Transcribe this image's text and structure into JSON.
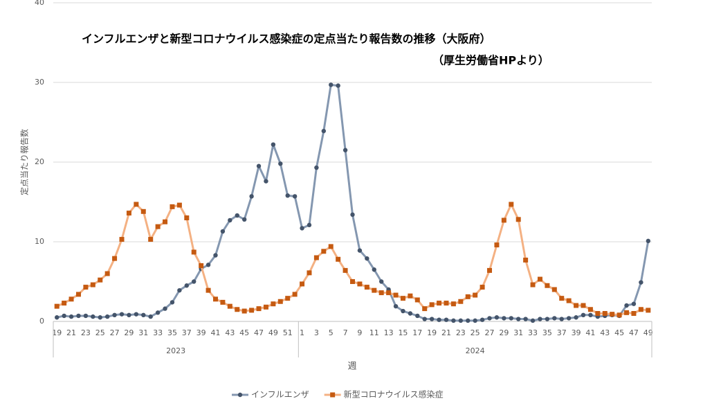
{
  "chart_data": {
    "type": "line",
    "title": "インフルエンザと新型コロナウイルス感染症の定点当たり報告数の推移（大阪府）",
    "subtitle": "（厚生労働省HPより）",
    "y_label": "定点当たり報告数",
    "x_label": "週",
    "categories": [
      "19",
      null,
      "21",
      null,
      "23",
      null,
      "25",
      null,
      "27",
      null,
      "29",
      null,
      "31",
      null,
      "33",
      null,
      "35",
      null,
      "37",
      null,
      "39",
      null,
      "41",
      null,
      "43",
      null,
      "45",
      null,
      "47",
      null,
      "49",
      null,
      "51",
      null,
      "1",
      null,
      "3",
      null,
      "5",
      null,
      "7",
      null,
      "9",
      null,
      "11",
      null,
      "13",
      null,
      "15",
      null,
      "17",
      null,
      "19",
      null,
      "21",
      null,
      "23",
      null,
      "25",
      null,
      "27",
      null,
      "29",
      null,
      "31",
      null,
      "33",
      null,
      "35",
      null,
      "37",
      null,
      "39",
      null,
      "41",
      null,
      "43",
      null,
      "45",
      null,
      "47",
      null,
      "49"
    ],
    "groups": [
      {
        "label": "2023",
        "count": 34
      },
      {
        "label": "2024",
        "count": 49
      }
    ],
    "series": [
      {
        "name": "インフルエンザ",
        "color": "#8497b0",
        "marker_color": "#44546a",
        "marker": "circle",
        "values": [
          0.5,
          0.7,
          0.6,
          0.7,
          0.7,
          0.6,
          0.5,
          0.6,
          0.8,
          0.9,
          0.8,
          0.9,
          0.8,
          0.6,
          1.1,
          1.6,
          2.4,
          3.9,
          4.5,
          5.0,
          6.6,
          7.1,
          8.3,
          11.3,
          12.7,
          13.3,
          12.8,
          15.7,
          19.5,
          17.6,
          22.2,
          19.8,
          15.8,
          15.7,
          11.7,
          12.1,
          19.3,
          23.9,
          29.7,
          29.6,
          21.5,
          13.4,
          8.9,
          7.9,
          6.5,
          5.0,
          4.0,
          1.9,
          1.3,
          1.0,
          0.7,
          0.3,
          0.3,
          0.2,
          0.2,
          0.1,
          0.1,
          0.1,
          0.1,
          0.2,
          0.4,
          0.5,
          0.4,
          0.4,
          0.3,
          0.3,
          0.1,
          0.3,
          0.3,
          0.4,
          0.3,
          0.4,
          0.5,
          0.8,
          0.8,
          0.6,
          0.7,
          0.8,
          0.7,
          2.0,
          2.2,
          4.9,
          10.1
        ]
      },
      {
        "name": "新型コロナウイルス感染症",
        "color": "#f4b183",
        "marker_color": "#c55a11",
        "marker": "square",
        "values": [
          1.9,
          2.3,
          2.8,
          3.4,
          4.3,
          4.6,
          5.2,
          6.0,
          7.9,
          10.3,
          13.6,
          14.7,
          13.8,
          10.3,
          11.9,
          12.5,
          14.4,
          14.6,
          13.0,
          8.7,
          7.0,
          3.9,
          2.8,
          2.4,
          1.9,
          1.5,
          1.3,
          1.4,
          1.6,
          1.8,
          2.2,
          2.5,
          2.9,
          3.4,
          4.7,
          6.1,
          8.0,
          8.8,
          9.4,
          7.8,
          6.4,
          5.0,
          4.7,
          4.3,
          3.9,
          3.6,
          3.6,
          3.3,
          2.9,
          3.2,
          2.7,
          1.6,
          2.1,
          2.3,
          2.3,
          2.2,
          2.5,
          3.1,
          3.3,
          4.3,
          6.4,
          9.6,
          12.7,
          14.7,
          12.8,
          7.7,
          4.6,
          5.3,
          4.5,
          4.0,
          2.9,
          2.6,
          2.0,
          2.0,
          1.5,
          1.0,
          1.0,
          0.9,
          0.8,
          1.1,
          1.0,
          1.5,
          1.4
        ]
      }
    ],
    "ylim": [
      0,
      40
    ],
    "yticks": [
      0,
      10,
      20,
      30,
      40
    ],
    "grid": true,
    "legend": "bottom"
  }
}
